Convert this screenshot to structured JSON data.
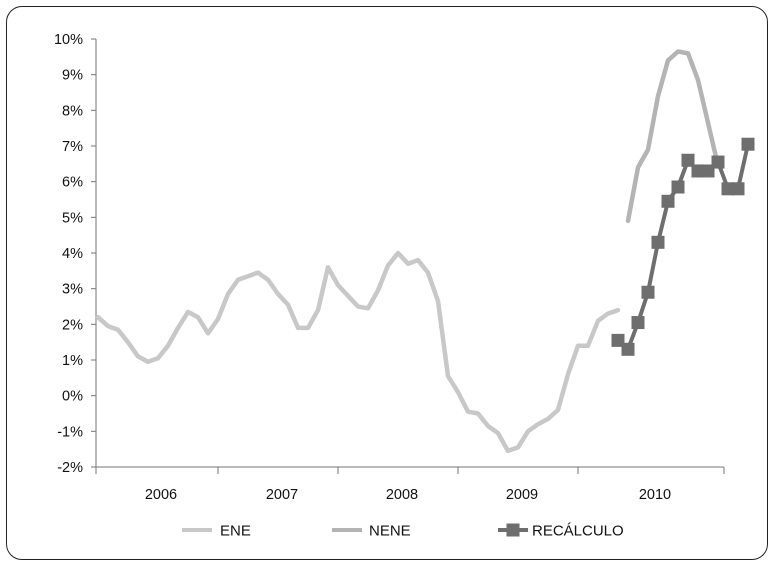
{
  "chart_data": {
    "type": "line",
    "title": "",
    "xlabel": "",
    "ylabel": "",
    "ylim": [
      -2,
      10
    ],
    "y_ticks": [
      "10%",
      "9%",
      "8%",
      "7%",
      "6%",
      "5%",
      "4%",
      "3%",
      "2%",
      "1%",
      "0%",
      "-1%",
      "-2%"
    ],
    "x_categories": [
      "2006",
      "2007",
      "2008",
      "2009",
      "2010"
    ],
    "x_range_months": "2005-08 to 2010-12",
    "grid": false,
    "legend_position": "bottom",
    "series": [
      {
        "name": "ENE",
        "color": "#c8c8c8",
        "marker": "none",
        "x": [
          "2005-08",
          "2005-09",
          "2005-10",
          "2005-11",
          "2005-12",
          "2006-01",
          "2006-02",
          "2006-03",
          "2006-04",
          "2006-05",
          "2006-06",
          "2006-07",
          "2006-08",
          "2006-09",
          "2006-10",
          "2006-11",
          "2006-12",
          "2007-01",
          "2007-02",
          "2007-03",
          "2007-04",
          "2007-05",
          "2007-06",
          "2007-07",
          "2007-08",
          "2007-09",
          "2007-10",
          "2007-11",
          "2007-12",
          "2008-01",
          "2008-02",
          "2008-03",
          "2008-04",
          "2008-05",
          "2008-06",
          "2008-07",
          "2008-08",
          "2008-09",
          "2008-10",
          "2008-11",
          "2008-12",
          "2009-01",
          "2009-02",
          "2009-03",
          "2009-04",
          "2009-05",
          "2009-06",
          "2009-07",
          "2009-08",
          "2009-09",
          "2009-10",
          "2009-11",
          "2009-12"
        ],
        "y": [
          2.2,
          1.95,
          1.85,
          1.5,
          1.1,
          0.95,
          1.05,
          1.4,
          1.9,
          2.35,
          2.2,
          1.75,
          2.15,
          2.85,
          3.25,
          3.35,
          3.45,
          3.25,
          2.85,
          2.55,
          1.9,
          1.9,
          2.4,
          3.6,
          3.1,
          2.8,
          2.5,
          2.45,
          2.95,
          3.65,
          4.0,
          3.7,
          3.8,
          3.45,
          2.65,
          0.55,
          0.1,
          -0.45,
          -0.5,
          -0.85,
          -1.05,
          -1.55,
          -1.45,
          -1.0,
          -0.8,
          -0.65,
          -0.4,
          0.6,
          1.4,
          1.4,
          2.1,
          2.3,
          2.4
        ]
      },
      {
        "name": "NENE",
        "color": "#b4b4b4",
        "marker": "none",
        "x": [
          "2010-01",
          "2010-02",
          "2010-03",
          "2010-04",
          "2010-05",
          "2010-06",
          "2010-07",
          "2010-08",
          "2010-09",
          "2010-10"
        ],
        "y": [
          4.9,
          6.4,
          6.9,
          8.4,
          9.4,
          9.65,
          9.6,
          8.85,
          7.65,
          6.45
        ]
      },
      {
        "name": "RECÁLCULO",
        "color": "#6e6e6e",
        "marker": "square",
        "x": [
          "2009-12",
          "2010-01",
          "2010-02",
          "2010-03",
          "2010-04",
          "2010-05",
          "2010-06",
          "2010-07",
          "2010-08",
          "2010-09",
          "2010-10",
          "2010-11",
          "2010-12",
          "2011-01"
        ],
        "y": [
          1.55,
          1.3,
          2.05,
          2.9,
          4.3,
          5.45,
          5.85,
          6.6,
          6.3,
          6.3,
          6.55,
          5.8,
          5.8,
          7.05
        ]
      }
    ]
  }
}
